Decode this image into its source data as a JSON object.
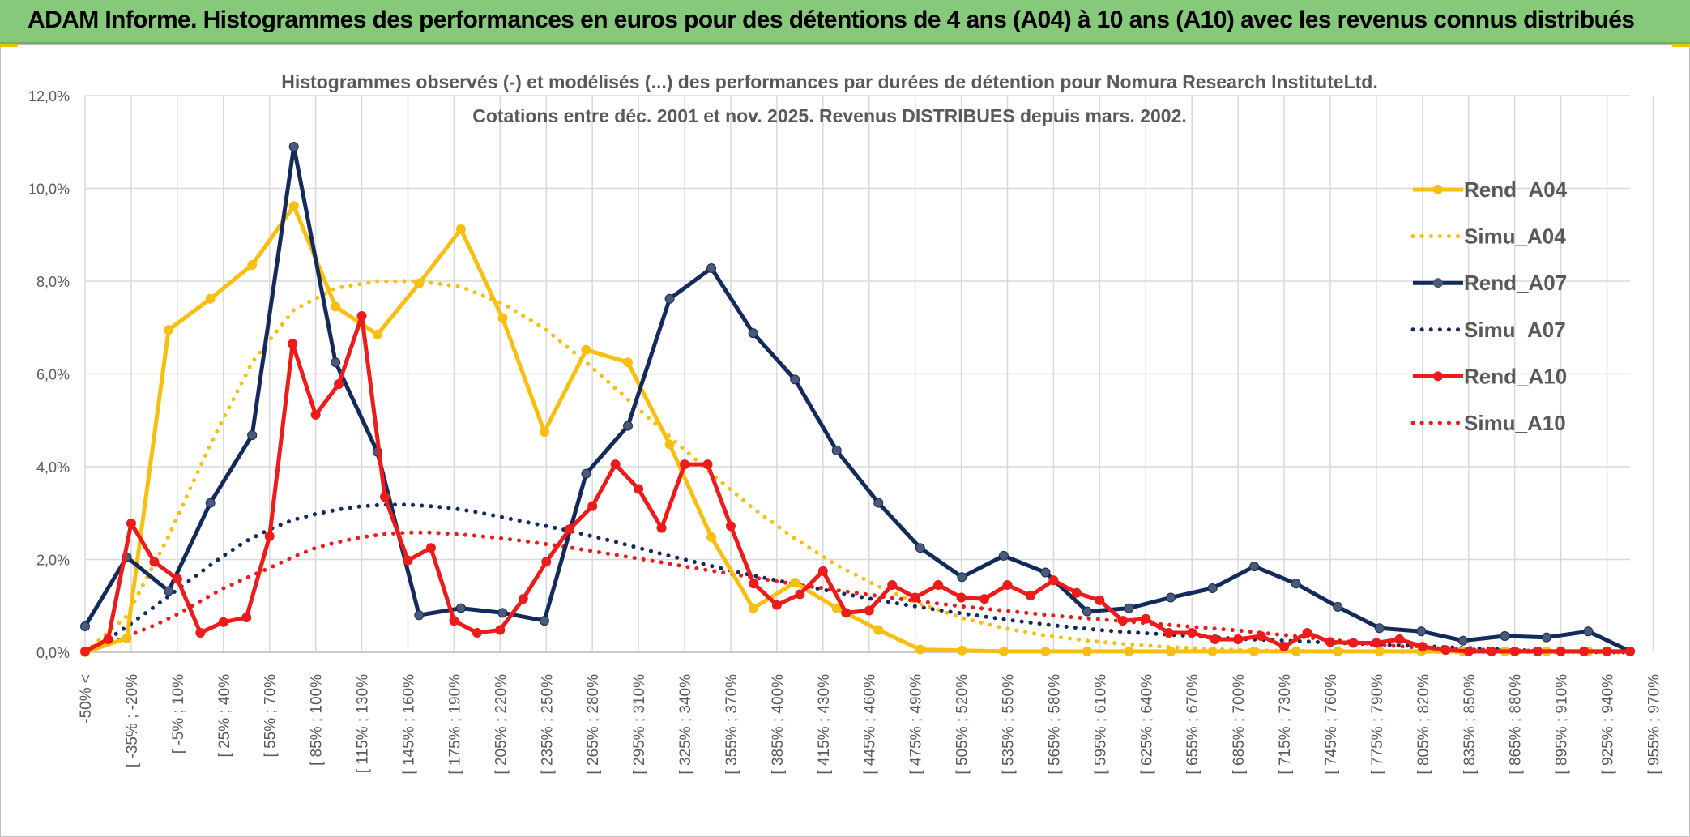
{
  "banner": {
    "title": "ADAM Informe. Histogrammes des performances en euros pour des détentions de 4 ans (A04) à 10 ans (A10) avec les revenus connus distribués"
  },
  "chart_data": {
    "type": "line",
    "title": "Histogrammes observés (-) et modélisés (...) des performances par durées de détention pour Nomura Research InstituteLtd.",
    "subtitle": "Cotations entre déc. 2001 et nov. 2025. Revenus DISTRIBUES depuis mars. 2002.",
    "xlabel": "",
    "ylabel": "",
    "ylim": [
      0,
      0.12
    ],
    "yticks": [
      "0,0%",
      "2,0%",
      "4,0%",
      "6,0%",
      "8,0%",
      "10,0%",
      "12,0%"
    ],
    "grid": true,
    "legend_position": "right",
    "x_tick_labels": [
      "-50% <",
      "[ -35% ; -20%",
      "[ -5% ; 10%",
      "[ 25% ; 40%",
      "[ 55% ; 70%",
      "[ 85% ; 100%",
      "[ 115% ; 130%",
      "[ 145% ; 160%",
      "[ 175% ; 190%",
      "[ 205% ; 220%",
      "[ 235% ; 250%",
      "[ 265% ; 280%",
      "[ 295% ; 310%",
      "[ 325% ; 340%",
      "[ 355% ; 370%",
      "[ 385% ; 400%",
      "[ 415% ; 430%",
      "[ 445% ; 460%",
      "[ 475% ; 490%",
      "[ 505% ; 520%",
      "[ 535% ; 550%",
      "[ 565% ; 580%",
      "[ 595% ; 610%",
      "[ 625% ; 640%",
      "[ 655% ; 670%",
      "[ 685% ; 700%",
      "[ 715% ; 730%",
      "[ 745% ; 760%",
      "[ 775% ; 790%",
      "[ 805% ; 820%",
      "[ 835% ; 850%",
      "[ 865% ; 880%",
      "[ 895% ; 910%",
      "[ 925% ; 940%",
      "[ 955% ; 970%"
    ],
    "series": [
      {
        "name": "Rend_A04",
        "color": "#f9bf10",
        "style": "solid",
        "markers": true,
        "values": [
          0.0,
          0.003,
          0.0695,
          0.0762,
          0.0835,
          0.0962,
          0.0745,
          0.0685,
          0.0795,
          0.0912,
          0.072,
          0.0475,
          0.0652,
          0.0625,
          0.0448,
          0.0248,
          0.0095,
          0.015,
          0.0095,
          0.0048,
          0.0006,
          0.0004,
          0.0002,
          0.0002,
          0.0002,
          0.0002,
          0.0002,
          0.0002,
          0.0002,
          0.0002,
          0.0002,
          0.0002,
          0.0002,
          0.0002,
          0.0002,
          0.0002,
          0.0002,
          0.0002
        ]
      },
      {
        "name": "Simu_A04",
        "color": "#f9bf10",
        "style": "dotted",
        "markers": false,
        "values": [
          0.0,
          0.0078,
          0.025,
          0.0448,
          0.0625,
          0.0738,
          0.0785,
          0.08,
          0.08,
          0.0788,
          0.0752,
          0.0698,
          0.0625,
          0.0545,
          0.0465,
          0.0385,
          0.031,
          0.0245,
          0.0188,
          0.0142,
          0.0104,
          0.0074,
          0.0052,
          0.0036,
          0.0025,
          0.0017,
          0.0011,
          0.0007,
          0.0004,
          0.0003,
          0.0002,
          0.0001,
          0.0001,
          0.0,
          0.0,
          0.0,
          0.0,
          0.0
        ]
      },
      {
        "name": "Rend_A07",
        "color": "#142a5c",
        "style": "solid",
        "markers": true,
        "values": [
          0.0056,
          0.0205,
          0.0132,
          0.0322,
          0.0468,
          0.109,
          0.0625,
          0.0432,
          0.008,
          0.0095,
          0.0085,
          0.0068,
          0.0385,
          0.0488,
          0.0762,
          0.0828,
          0.0688,
          0.0588,
          0.0435,
          0.0322,
          0.0225,
          0.0162,
          0.0208,
          0.0172,
          0.0088,
          0.0095,
          0.0118,
          0.0138,
          0.0185,
          0.0148,
          0.0098,
          0.0052,
          0.0045,
          0.0025,
          0.0035,
          0.0032,
          0.0045,
          0.0002
        ]
      },
      {
        "name": "Simu_A07",
        "color": "#142a5c",
        "style": "dotted",
        "markers": false,
        "values": [
          0.0,
          0.0028,
          0.0062,
          0.0098,
          0.0135,
          0.0172,
          0.0208,
          0.024,
          0.0265,
          0.0285,
          0.0298,
          0.0308,
          0.0315,
          0.0318,
          0.0318,
          0.0315,
          0.031,
          0.0302,
          0.0292,
          0.0282,
          0.0272,
          0.0262,
          0.025,
          0.0238,
          0.0225,
          0.0212,
          0.02,
          0.0188,
          0.0176,
          0.0165,
          0.0155,
          0.0145,
          0.0135,
          0.0125,
          0.0116,
          0.0107,
          0.0099,
          0.0091,
          0.0084,
          0.0077,
          0.007,
          0.0064,
          0.0058,
          0.0053,
          0.0048,
          0.0044,
          0.0041,
          0.0038,
          0.0035,
          0.0032,
          0.0029,
          0.0027,
          0.0025,
          0.0023,
          0.0021,
          0.0019,
          0.0017,
          0.0015,
          0.0013,
          0.0011,
          0.0009,
          0.0007,
          0.0005,
          0.0003,
          0.0002,
          0.0001,
          0.0,
          0.0
        ]
      },
      {
        "name": "Rend_A10",
        "color": "#ee1b1b",
        "style": "solid",
        "markers": true,
        "values": [
          0.0002,
          0.0028,
          0.0278,
          0.0195,
          0.0158,
          0.0042,
          0.0065,
          0.0075,
          0.025,
          0.0665,
          0.0512,
          0.0578,
          0.0725,
          0.0335,
          0.0198,
          0.0225,
          0.0068,
          0.0042,
          0.0048,
          0.0115,
          0.0195,
          0.0265,
          0.0315,
          0.0405,
          0.0352,
          0.0268,
          0.0405,
          0.0405,
          0.0272,
          0.0148,
          0.0102,
          0.0125,
          0.0175,
          0.0085,
          0.009,
          0.0145,
          0.0118,
          0.0145,
          0.0118,
          0.0115,
          0.0145,
          0.0122,
          0.0155,
          0.0128,
          0.0112,
          0.0068,
          0.0072,
          0.0042,
          0.0042,
          0.0028,
          0.0028,
          0.0035,
          0.0012,
          0.0042,
          0.0022,
          0.002,
          0.002,
          0.0028,
          0.0012,
          0.0005,
          0.0002,
          0.0002,
          0.0002,
          0.0002,
          0.0002,
          0.0002,
          0.0002,
          0.0002
        ]
      },
      {
        "name": "Simu_A10",
        "color": "#ee1b1b",
        "style": "dotted",
        "markers": false,
        "values": [
          0.0,
          0.0018,
          0.0038,
          0.0058,
          0.0082,
          0.011,
          0.0138,
          0.016,
          0.0182,
          0.0205,
          0.0225,
          0.0238,
          0.0248,
          0.0255,
          0.0258,
          0.0258,
          0.0255,
          0.0251,
          0.0246,
          0.024,
          0.0233,
          0.0226,
          0.0218,
          0.021,
          0.0202,
          0.0194,
          0.0185,
          0.0177,
          0.0169,
          0.0161,
          0.0153,
          0.0145,
          0.0138,
          0.0131,
          0.0124,
          0.0117,
          0.0111,
          0.0105,
          0.0099,
          0.0094,
          0.0089,
          0.0084,
          0.0079,
          0.0075,
          0.0071,
          0.0067,
          0.0063,
          0.0059,
          0.0055,
          0.0051,
          0.0047,
          0.0042,
          0.0037,
          0.0032,
          0.0027,
          0.0022,
          0.0017,
          0.0013,
          0.001,
          0.0008,
          0.0006,
          0.0005,
          0.0004,
          0.0003,
          0.0002,
          0.0002,
          0.0001,
          0.0
        ]
      }
    ]
  }
}
